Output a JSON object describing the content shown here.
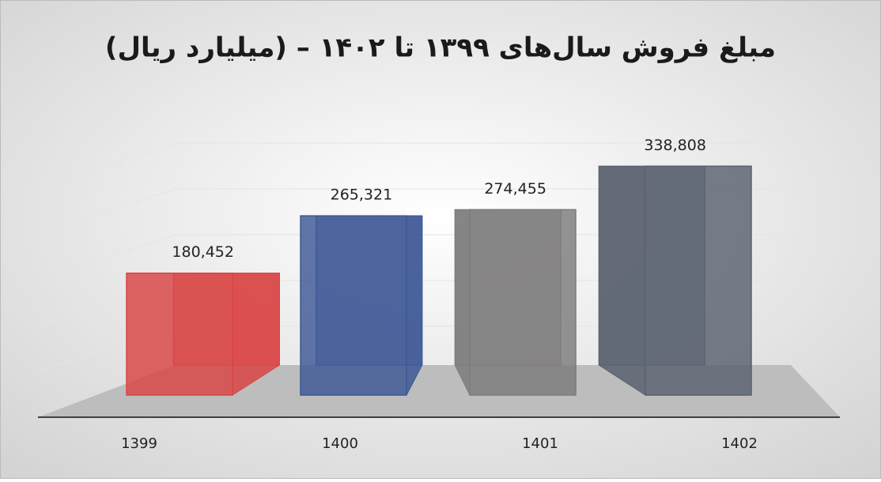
{
  "chart_data": {
    "type": "bar3d",
    "title": "مبلغ فروش سال‌های ۱۳۹۹ تا ۱۴۰۲ – (میلیارد ریال)",
    "categories": [
      "1399",
      "1400",
      "1401",
      "1402"
    ],
    "values": [
      180452,
      265321,
      274455,
      338808
    ],
    "value_labels": [
      "180,452",
      "265,321",
      "274,455",
      "338,808"
    ],
    "colors": [
      "#d94444",
      "#3d5895",
      "#7d7b7b",
      "#59606f"
    ],
    "ylim": [
      0,
      400000
    ]
  }
}
